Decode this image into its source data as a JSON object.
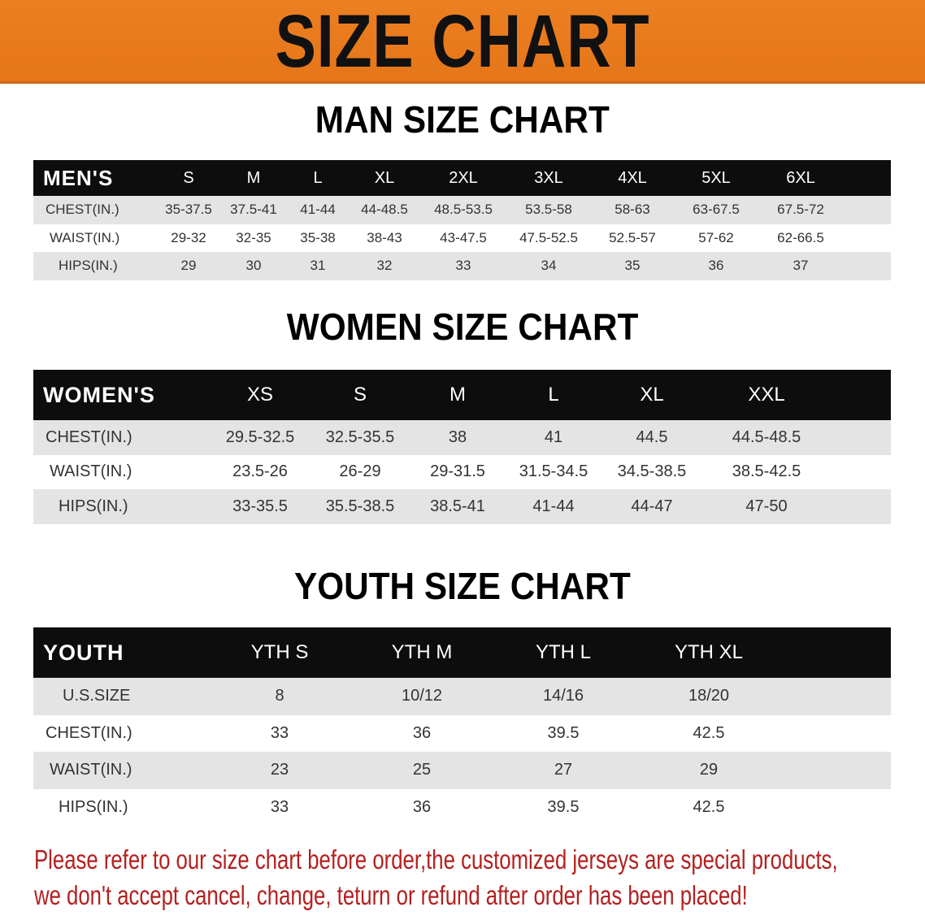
{
  "banner": {
    "title": "SIZE CHART",
    "color": "#e8781e"
  },
  "men": {
    "title": "MAN SIZE CHART",
    "header": "MEN'S",
    "sizes": [
      "S",
      "M",
      "L",
      "XL",
      "2XL",
      "3XL",
      "4XL",
      "5XL",
      "6XL"
    ],
    "rows": [
      {
        "label": "CHEST(IN.)",
        "values": [
          "35-37.5",
          "37.5-41",
          "41-44",
          "44-48.5",
          "48.5-53.5",
          "53.5-58",
          "58-63",
          "63-67.5",
          "67.5-72"
        ]
      },
      {
        "label": "WAIST(IN.)",
        "values": [
          "29-32",
          "32-35",
          "35-38",
          "38-43",
          "43-47.5",
          "47.5-52.5",
          "52.5-57",
          "57-62",
          "62-66.5"
        ]
      },
      {
        "label": "HIPS(IN.)",
        "values": [
          "29",
          "30",
          "31",
          "32",
          "33",
          "34",
          "35",
          "36",
          "37"
        ]
      }
    ]
  },
  "women": {
    "title": "WOMEN SIZE CHART",
    "header": "WOMEN'S",
    "sizes": [
      "XS",
      "S",
      "M",
      "L",
      "XL",
      "XXL"
    ],
    "rows": [
      {
        "label": "CHEST(IN.)",
        "values": [
          "29.5-32.5",
          "32.5-35.5",
          "38",
          "41",
          "44.5",
          "44.5-48.5"
        ]
      },
      {
        "label": "WAIST(IN.)",
        "values": [
          "23.5-26",
          "26-29",
          "29-31.5",
          "31.5-34.5",
          "34.5-38.5",
          "38.5-42.5"
        ]
      },
      {
        "label": "HIPS(IN.)",
        "values": [
          "33-35.5",
          "35.5-38.5",
          "38.5-41",
          "41-44",
          "44-47",
          "47-50"
        ]
      }
    ]
  },
  "youth": {
    "title": "YOUTH SIZE CHART",
    "header": "YOUTH",
    "sizes": [
      "YTH S",
      "YTH M",
      "YTH L",
      "YTH XL"
    ],
    "rows": [
      {
        "label": "U.S.SIZE",
        "values": [
          "8",
          "10/12",
          "14/16",
          "18/20"
        ]
      },
      {
        "label": "CHEST(IN.)",
        "values": [
          "33",
          "36",
          "39.5",
          "42.5"
        ]
      },
      {
        "label": "WAIST(IN.)",
        "values": [
          "23",
          "25",
          "27",
          "29"
        ]
      },
      {
        "label": "HIPS(IN.)",
        "values": [
          "33",
          "36",
          "39.5",
          "42.5"
        ]
      }
    ]
  },
  "notice": {
    "line1": "Please refer to our size chart before order,the customized jerseys are special products,",
    "line2": "we don't accept cancel, change, teturn or refund after order has been placed!",
    "color": "#b3201f"
  }
}
